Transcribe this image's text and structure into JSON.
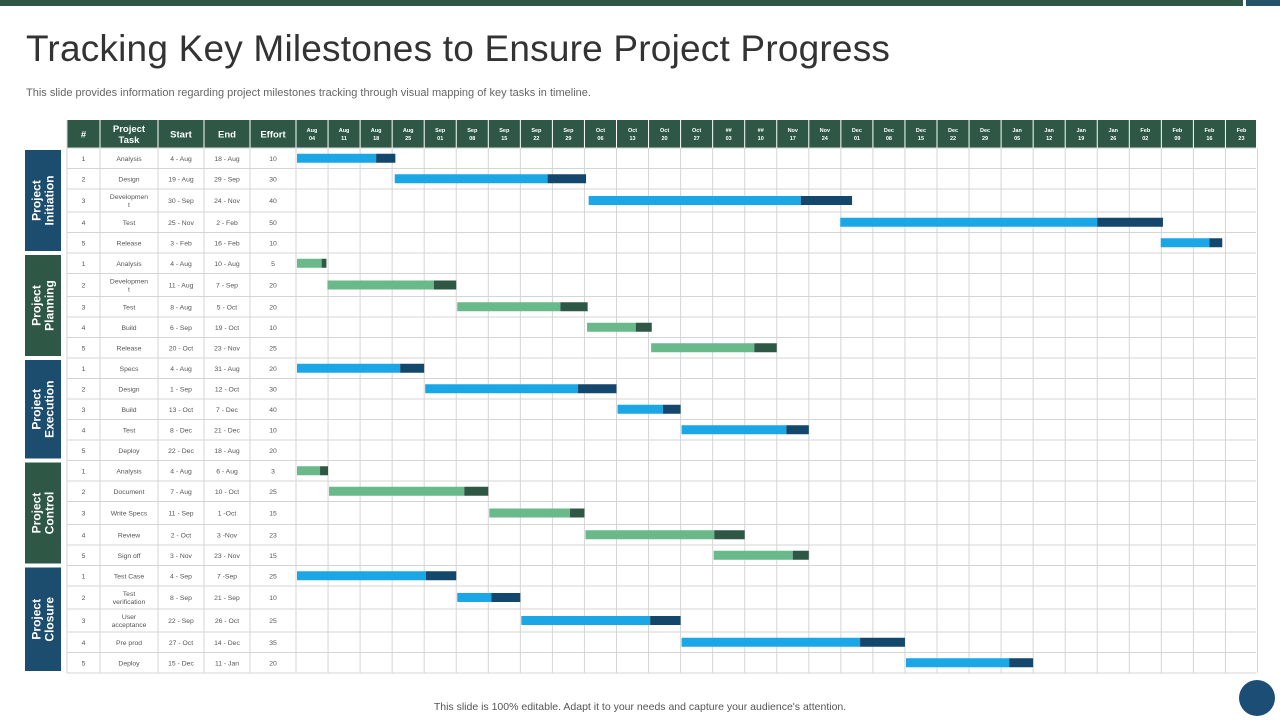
{
  "slide": {
    "title": "Tracking Key Milestones to Ensure Project Progress",
    "subtitle": "This slide provides information regarding project milestones tracking through visual mapping of key tasks in timeline.",
    "footer": "This slide is 100% editable. Adapt it to your needs and capture your audience's attention."
  },
  "table": {
    "columns": [
      "#",
      "Project Task",
      "Start",
      "End",
      "Effort"
    ],
    "weeks": [
      [
        "Aug",
        "04"
      ],
      [
        "Aug",
        "11"
      ],
      [
        "Aug",
        "18"
      ],
      [
        "Aug",
        "25"
      ],
      [
        "Sep",
        "01"
      ],
      [
        "Sep",
        "08"
      ],
      [
        "Sep",
        "15"
      ],
      [
        "Sep",
        "22"
      ],
      [
        "Sep",
        "29"
      ],
      [
        "Oct",
        "06"
      ],
      [
        "Oct",
        "13"
      ],
      [
        "Oct",
        "20"
      ],
      [
        "Oct",
        "27"
      ],
      [
        "##",
        "03"
      ],
      [
        "##",
        "10"
      ],
      [
        "Nov",
        "17"
      ],
      [
        "Nov",
        "24"
      ],
      [
        "Dec",
        "01"
      ],
      [
        "Dec",
        "08"
      ],
      [
        "Dec",
        "15"
      ],
      [
        "Dec",
        "22"
      ],
      [
        "Dec",
        "29"
      ],
      [
        "Jan",
        "05"
      ],
      [
        "Jan",
        "12"
      ],
      [
        "Jan",
        "19"
      ],
      [
        "Jan",
        "26"
      ],
      [
        "Feb",
        "02"
      ],
      [
        "Feb",
        "09"
      ],
      [
        "Feb",
        "16"
      ],
      [
        "Feb",
        "23"
      ]
    ]
  },
  "colors": {
    "header_bg": "#2e5845",
    "phase_bg_blue": "#1d4d6e",
    "phase_bg_green": "#2e5845",
    "bar_blue": "#1ba7e6",
    "bar_blue_end": "#13476b",
    "bar_green": "#6ab98b",
    "bar_green_end": "#2e5845"
  },
  "phases": [
    {
      "name": "Project Initiation",
      "scheme": "blue",
      "tasks": [
        {
          "num": "1",
          "task": "Analysis",
          "start": "4 - Aug",
          "end": "18 - Aug",
          "effort": "10",
          "bar_start": 0,
          "bar_end": 3.1,
          "bar_split": 2.5
        },
        {
          "num": "2",
          "task": "Design",
          "start": "19 - Aug",
          "end": "29 - Sep",
          "effort": "30",
          "bar_start": 3.05,
          "bar_end": 9.05,
          "bar_split": 7.85
        },
        {
          "num": "3",
          "task": "Developmen t",
          "start": "30 - Sep",
          "end": "24 - Nov",
          "effort": "40",
          "bar_start": 9.1,
          "bar_end": 17.35,
          "bar_split": 15.75
        },
        {
          "num": "4",
          "task": "Test",
          "start": "25 - Nov",
          "end": "2 - Feb",
          "effort": "50",
          "bar_start": 16.95,
          "bar_end": 27.05,
          "bar_split": 25.0
        },
        {
          "num": "5",
          "task": "Release",
          "start": "3 - Feb",
          "end": "16 - Feb",
          "effort": "10",
          "bar_start": 26.95,
          "bar_end": 28.9,
          "bar_split": 28.5
        }
      ]
    },
    {
      "name": "Project Planning",
      "scheme": "green",
      "tasks": [
        {
          "num": "1",
          "task": "Analysis",
          "start": "4 - Aug",
          "end": "10 - Aug",
          "effort": "5",
          "bar_start": 0,
          "bar_end": 0.95,
          "bar_split": 0.8
        },
        {
          "num": "2",
          "task": "Developmen t",
          "start": "11 - Aug",
          "end": "7 - Sep",
          "effort": "20",
          "bar_start": 0.95,
          "bar_end": 5.0,
          "bar_split": 4.3
        },
        {
          "num": "3",
          "task": "Test",
          "start": "8 - Aug",
          "end": "5 - Oct",
          "effort": "20",
          "bar_start": 5.0,
          "bar_end": 9.1,
          "bar_split": 8.25
        },
        {
          "num": "4",
          "task": "Build",
          "start": "6 - Sep",
          "end": "19 - Oct",
          "effort": "10",
          "bar_start": 9.05,
          "bar_end": 11.1,
          "bar_split": 10.6
        },
        {
          "num": "5",
          "task": "Release",
          "start": "20 - Oct",
          "end": "23 - Nov",
          "effort": "25",
          "bar_start": 11.05,
          "bar_end": 15.0,
          "bar_split": 14.3
        }
      ]
    },
    {
      "name": "Project Execution",
      "scheme": "blue",
      "tasks": [
        {
          "num": "1",
          "task": "Specs",
          "start": "4 - Aug",
          "end": "31 - Aug",
          "effort": "20",
          "bar_start": 0,
          "bar_end": 4.0,
          "bar_split": 3.25
        },
        {
          "num": "2",
          "task": "Design",
          "start": "1 - Sep",
          "end": "12 - Oct",
          "effort": "30",
          "bar_start": 4.0,
          "bar_end": 10.0,
          "bar_split": 8.8
        },
        {
          "num": "3",
          "task": "Build",
          "start": "13 - Oct",
          "end": "7 - Dec",
          "effort": "40",
          "bar_start": 10.0,
          "bar_end": 12.0,
          "bar_split": 11.45
        },
        {
          "num": "4",
          "task": "Test",
          "start": "8 - Dec",
          "end": "21 - Dec",
          "effort": "10",
          "bar_start": 12.0,
          "bar_end": 16.0,
          "bar_split": 15.3
        },
        {
          "num": "5",
          "task": "Deploy",
          "start": "22 - Dec",
          "end": "18 - Aug",
          "effort": "20"
        }
      ]
    },
    {
      "name": "Project Control",
      "scheme": "green",
      "tasks": [
        {
          "num": "1",
          "task": "Analysis",
          "start": "4 - Aug",
          "end": "6 - Aug",
          "effort": "3",
          "bar_start": 0,
          "bar_end": 1.0,
          "bar_split": 0.75
        },
        {
          "num": "2",
          "task": "Document",
          "start": "7 - Aug",
          "end": "10 - Oct",
          "effort": "25",
          "bar_start": 1.0,
          "bar_end": 6.0,
          "bar_split": 5.25
        },
        {
          "num": "3",
          "task": "Write Specs",
          "start": "11 - Sep",
          "end": "1 -Oct",
          "effort": "15",
          "bar_start": 6.0,
          "bar_end": 9.0,
          "bar_split": 8.55
        },
        {
          "num": "4",
          "task": "Review",
          "start": "2 - Oct",
          "end": "3 -Nov",
          "effort": "23",
          "bar_start": 9.0,
          "bar_end": 14.0,
          "bar_split": 13.05
        },
        {
          "num": "5",
          "task": "Sign off",
          "start": "3 - Nov",
          "end": "23 - Nov",
          "effort": "15",
          "bar_start": 13.0,
          "bar_end": 16.0,
          "bar_split": 15.5
        }
      ]
    },
    {
      "name": "Project Closure",
      "scheme": "blue",
      "tasks": [
        {
          "num": "1",
          "task": "Test Case",
          "start": "4 - Sep",
          "end": "7 -Sep",
          "effort": "25",
          "bar_start": 0,
          "bar_end": 5.0,
          "bar_split": 4.05
        },
        {
          "num": "2",
          "task": "Test verification",
          "start": "8 - Sep",
          "end": "21 - Sep",
          "effort": "10",
          "bar_start": 5.0,
          "bar_end": 7.0,
          "bar_split": 6.1
        },
        {
          "num": "3",
          "task": "User acceptance",
          "start": "22 - Sep",
          "end": "26 - Oct",
          "effort": "25",
          "bar_start": 7.0,
          "bar_end": 12.0,
          "bar_split": 11.05
        },
        {
          "num": "4",
          "task": "Pre prod",
          "start": "27 - Oct",
          "end": "14 - Dec",
          "effort": "35",
          "bar_start": 12.0,
          "bar_end": 19.0,
          "bar_split": 17.6
        },
        {
          "num": "5",
          "task": "Deploy",
          "start": "15 - Dec",
          "end": "11 - Jan",
          "effort": "20",
          "bar_start": 19.0,
          "bar_end": 23.0,
          "bar_split": 22.25
        }
      ]
    }
  ]
}
